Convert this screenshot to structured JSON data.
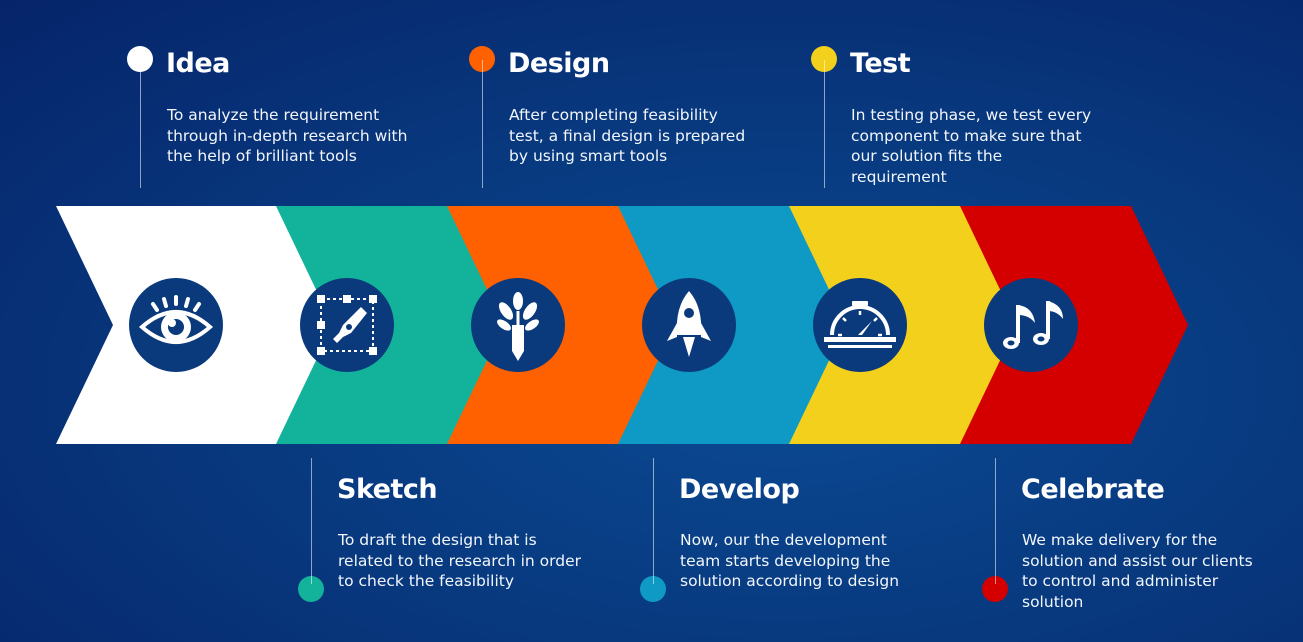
{
  "steps": [
    {
      "title": "Idea",
      "color": "#ffffff",
      "icon": "eye-icon",
      "position": "top",
      "description": "To analyze the requirement through in-depth research with the help of brilliant tools"
    },
    {
      "title": "Sketch",
      "color": "#12b39a",
      "icon": "pen-tool-icon",
      "position": "bottom",
      "description": "To draft the design that is related to the research in order to check the feasibility"
    },
    {
      "title": "Design",
      "color": "#ff6000",
      "icon": "pencil-plant-icon",
      "position": "top",
      "description": "After completing feasibility test, a final design is prepared by using smart tools"
    },
    {
      "title": "Develop",
      "color": "#0e9ac4",
      "icon": "rocket-icon",
      "position": "bottom",
      "description": "Now, our the development team starts developing the solution according to design"
    },
    {
      "title": "Test",
      "color": "#f2d01c",
      "icon": "gauge-icon",
      "position": "top",
      "description": "In testing phase, we test every component to make sure that our solution fits the requirement"
    },
    {
      "title": "Celebrate",
      "color": "#d40000",
      "icon": "music-notes-icon",
      "position": "bottom",
      "description": "We make delivery for the solution and assist our clients to control and administer solution"
    }
  ],
  "icon_circle_color": "#0a3a7c"
}
